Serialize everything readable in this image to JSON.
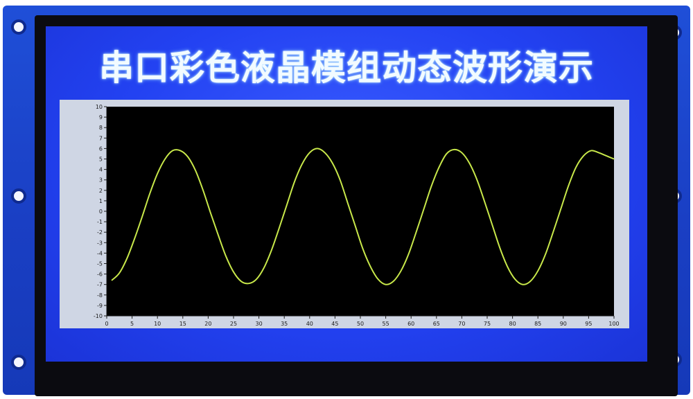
{
  "screen": {
    "title": "串口彩色液晶模组动态波形演示"
  },
  "colors": {
    "screen_blue": "#2342f2",
    "plot_background": "#000000",
    "waveform": "#c8e84a",
    "panel_gray": "#cfd6e4"
  },
  "chart_data": {
    "type": "line",
    "title": "",
    "xlabel": "",
    "ylabel": "",
    "xlim": [
      0,
      100
    ],
    "ylim": [
      -10,
      10
    ],
    "x_ticks": [
      0,
      5,
      10,
      15,
      20,
      25,
      30,
      35,
      40,
      45,
      50,
      55,
      60,
      65,
      70,
      75,
      80,
      85,
      90,
      95,
      100
    ],
    "y_ticks": [
      10,
      9,
      8,
      7,
      6,
      5,
      4,
      3,
      2,
      1,
      0,
      -1,
      -2,
      -3,
      -4,
      -5,
      -6,
      -7,
      -8,
      -9,
      -10
    ],
    "grid": false,
    "series": [
      {
        "name": "",
        "x": [
          1,
          2.5,
          4,
          5.5,
          7,
          8.5,
          10,
          11.5,
          13,
          14.5,
          16,
          17.5,
          19,
          20.5,
          22,
          23.5,
          25,
          26.5,
          28,
          29.5,
          31,
          32.5,
          34,
          35.5,
          37,
          38.5,
          40,
          41.5,
          43,
          44.5,
          46,
          47.5,
          49,
          50.5,
          52,
          53.5,
          55,
          56.5,
          58,
          59.5,
          61,
          62.5,
          64,
          65.5,
          67,
          68.5,
          70,
          71.5,
          73,
          74.5,
          76,
          77.5,
          79,
          80.5,
          82,
          83.5,
          85,
          86.5,
          88,
          89.5,
          91,
          92.5,
          94,
          95.5,
          97,
          98.5,
          100
        ],
        "values": [
          -6.6,
          -5.9,
          -4.5,
          -2.6,
          -0.5,
          1.7,
          3.6,
          5.0,
          5.8,
          5.8,
          5.2,
          3.9,
          2.0,
          -0.2,
          -2.3,
          -4.3,
          -5.8,
          -6.7,
          -6.9,
          -6.5,
          -5.4,
          -3.7,
          -1.6,
          0.6,
          2.8,
          4.5,
          5.6,
          6.0,
          5.6,
          4.6,
          3.0,
          0.8,
          -1.4,
          -3.6,
          -5.3,
          -6.5,
          -7.0,
          -6.7,
          -5.7,
          -4.1,
          -2.0,
          0.2,
          2.4,
          4.2,
          5.5,
          5.9,
          5.6,
          4.6,
          3.0,
          0.9,
          -1.3,
          -3.5,
          -5.3,
          -6.5,
          -7.0,
          -6.7,
          -5.7,
          -4.1,
          -2.0,
          0.2,
          2.4,
          4.2,
          5.3,
          5.8,
          5.6,
          5.3,
          5.0
        ]
      }
    ]
  }
}
